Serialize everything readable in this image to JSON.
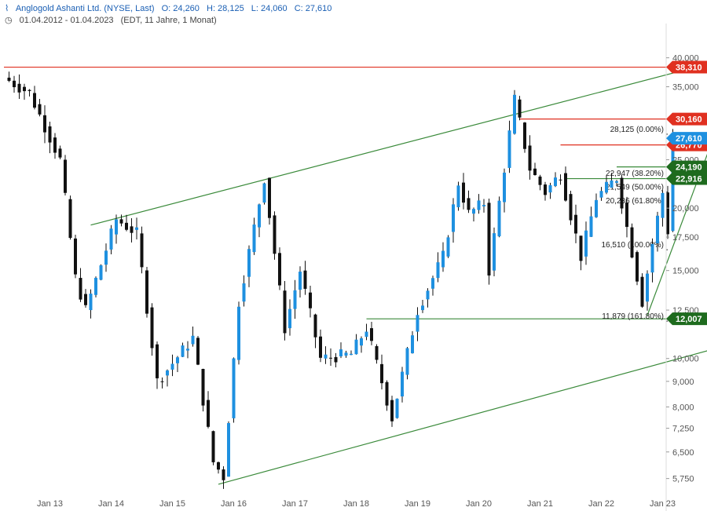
{
  "header": {
    "title": "Anglogold Ashanti Ltd. (NYSE, Last)",
    "ohlc": {
      "o": "O: 24,260",
      "h": "H: 28,125",
      "l": "L: 24,060",
      "c": "C: 27,610"
    },
    "range": "01.04.2012 - 01.04.2023",
    "meta": "(EDT, 11 Jahre, 1 Monat)"
  },
  "colors": {
    "up": "#1e90e0",
    "down": "#111111",
    "trend": "#3a8a3a",
    "resistance": "#e03020",
    "support_badge": "#1e6b1e",
    "last_badge": "#1e90e0"
  },
  "chart_data": {
    "type": "candlestick",
    "title": "Anglogold Ashanti Ltd. (NYSE, Last)",
    "y_scale": "log",
    "ylim": [
      5400,
      46000
    ],
    "y_ticks": [
      5750,
      6500,
      7250,
      8000,
      9000,
      10000,
      12500,
      15000,
      17500,
      20000,
      25000,
      35000,
      40000
    ],
    "y_tick_labels": [
      "5,750",
      "6,500",
      "7,250",
      "8,000",
      "9,000",
      "10,000",
      "12,500",
      "15,000",
      "17,500",
      "20,000",
      "25,000",
      "35,000",
      "40,000"
    ],
    "x_ticks": [
      "Jan 13",
      "Jan 14",
      "Jan 15",
      "Jan 16",
      "Jan 17",
      "Jan 18",
      "Jan 19",
      "Jan 20",
      "Jan 21",
      "Jan 22",
      "Jan 23"
    ],
    "anchors": [
      {
        "date": "2012-04",
        "price": 36500
      },
      {
        "date": "2012-09",
        "price": 34000
      },
      {
        "date": "2013-03",
        "price": 25000
      },
      {
        "date": "2013-06",
        "price": 14500
      },
      {
        "date": "2013-08",
        "price": 12500
      },
      {
        "date": "2014-02",
        "price": 19000
      },
      {
        "date": "2014-06",
        "price": 17800
      },
      {
        "date": "2014-10",
        "price": 9000
      },
      {
        "date": "2014-12",
        "price": 9500
      },
      {
        "date": "2015-05",
        "price": 11000
      },
      {
        "date": "2015-09",
        "price": 6200
      },
      {
        "date": "2015-11",
        "price": 5800
      },
      {
        "date": "2016-02",
        "price": 13000
      },
      {
        "date": "2016-07",
        "price": 23000
      },
      {
        "date": "2016-11",
        "price": 11500
      },
      {
        "date": "2017-02",
        "price": 15000
      },
      {
        "date": "2017-06",
        "price": 10000
      },
      {
        "date": "2017-12",
        "price": 10200
      },
      {
        "date": "2018-03",
        "price": 11500
      },
      {
        "date": "2018-08",
        "price": 7600
      },
      {
        "date": "2019-01",
        "price": 12500
      },
      {
        "date": "2019-06",
        "price": 16000
      },
      {
        "date": "2019-09",
        "price": 22500
      },
      {
        "date": "2019-11",
        "price": 19500
      },
      {
        "date": "2020-02",
        "price": 20500
      },
      {
        "date": "2020-03",
        "price": 15000
      },
      {
        "date": "2020-08",
        "price": 33000
      },
      {
        "date": "2020-11",
        "price": 24000
      },
      {
        "date": "2021-02",
        "price": 21500
      },
      {
        "date": "2021-05",
        "price": 23500
      },
      {
        "date": "2021-09",
        "price": 16000
      },
      {
        "date": "2021-12",
        "price": 21000
      },
      {
        "date": "2022-04",
        "price": 23000
      },
      {
        "date": "2022-09",
        "price": 13000
      },
      {
        "date": "2022-11",
        "price": 17000
      },
      {
        "date": "2023-01",
        "price": 21500
      },
      {
        "date": "2023-02",
        "price": 18000
      },
      {
        "date": "2023-03",
        "price": 27610
      }
    ],
    "horizontal_levels": [
      {
        "label": "38,310",
        "price": 38310,
        "kind": "resistance",
        "from": "2012-04"
      },
      {
        "label": "30,160",
        "price": 30160,
        "kind": "resistance",
        "from": "2020-09"
      },
      {
        "label": "26,770",
        "price": 26770,
        "kind": "resistance",
        "from": "2021-05"
      },
      {
        "label": "24,190",
        "price": 24190,
        "kind": "support",
        "from": "2022-04"
      },
      {
        "label": "22,916",
        "price": 22916,
        "kind": "support",
        "from": "2021-06"
      },
      {
        "label": "12,007",
        "price": 12007,
        "kind": "support",
        "from": "2018-03"
      },
      {
        "label": "27,610",
        "price": 27610,
        "kind": "last",
        "from": null
      }
    ],
    "fibonacci": [
      {
        "label": "28,125 (0.00%)",
        "price": 28125
      },
      {
        "label": "22,947 (38.20%)",
        "price": 22947
      },
      {
        "label": "21,549 (50.00%)",
        "price": 21549
      },
      {
        "label": "20,236 (61.80%)",
        "price": 20236
      },
      {
        "label": "16,510 (100.00%)",
        "price": 16510
      },
      {
        "label": "11,879 (161.80%)",
        "price": 11879
      }
    ],
    "trendlines": [
      {
        "from": {
          "date": "2013-09",
          "price": 18500
        },
        "to": {
          "date": "2025-06",
          "price": 44000
        }
      },
      {
        "from": {
          "date": "2015-10",
          "price": 5600
        },
        "to": {
          "date": "2025-06",
          "price": 11800
        }
      },
      {
        "from": {
          "date": "2022-10",
          "price": 12200
        },
        "to": {
          "date": "2024-07",
          "price": 46000
        }
      }
    ]
  }
}
